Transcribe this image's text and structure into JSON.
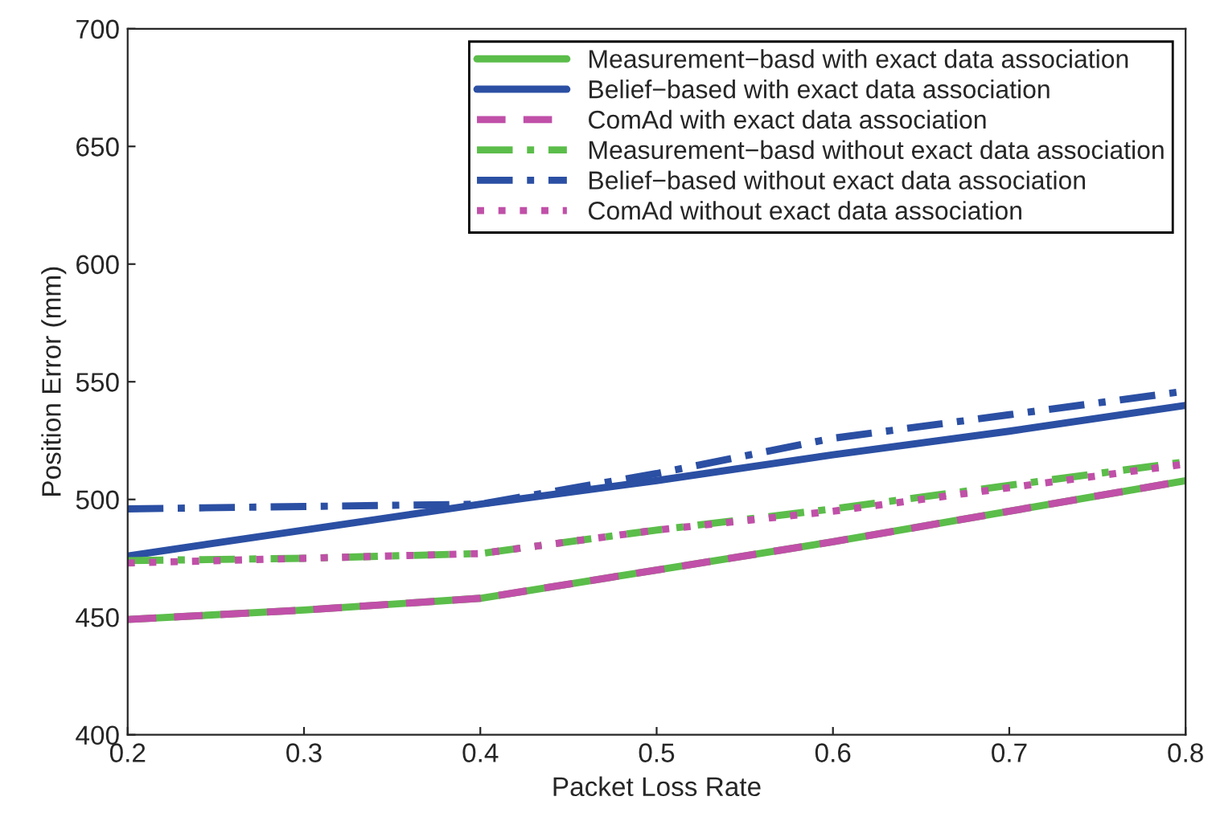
{
  "chart_data": {
    "type": "line",
    "xlabel": "Packet Loss Rate",
    "ylabel": "Position Error (mm)",
    "x": [
      0.2,
      0.3,
      0.4,
      0.5,
      0.6,
      0.7,
      0.8
    ],
    "xlim": [
      0.2,
      0.8
    ],
    "xticks": [
      0.2,
      0.3,
      0.4,
      0.5,
      0.6,
      0.7,
      0.8
    ],
    "ylim": [
      400,
      700
    ],
    "yticks": [
      400,
      450,
      500,
      550,
      600,
      650,
      700
    ],
    "grid": false,
    "legend": "top right",
    "marker": "none",
    "series": [
      {
        "name": "Measurement−basd with exact data association",
        "color": "#5bbd4a",
        "line_style": "solid",
        "values": [
          449,
          453,
          458,
          470,
          482,
          495,
          508
        ]
      },
      {
        "name": "Belief−based with exact data association",
        "color": "#2b4fa3",
        "line_style": "solid",
        "values": [
          476,
          487,
          498,
          508,
          519,
          529,
          540
        ]
      },
      {
        "name": "ComAd with exact data association",
        "color": "#c050a8",
        "line_style": "dashed",
        "values": [
          449,
          453,
          458,
          470,
          482,
          495,
          508
        ]
      },
      {
        "name": "Measurement−basd without exact data association",
        "color": "#5bbd4a",
        "line_style": "dashdot",
        "values": [
          474,
          475,
          477,
          487,
          496,
          506,
          516
        ]
      },
      {
        "name": "Belief−based without exact data association",
        "color": "#2b4fa3",
        "line_style": "dashdot",
        "values": [
          496,
          497,
          498,
          511,
          526,
          536,
          546
        ]
      },
      {
        "name": "ComAd without exact data association",
        "color": "#c050a8",
        "line_style": "dotted",
        "values": [
          473,
          475,
          477,
          487,
          495,
          505,
          515
        ]
      }
    ]
  }
}
